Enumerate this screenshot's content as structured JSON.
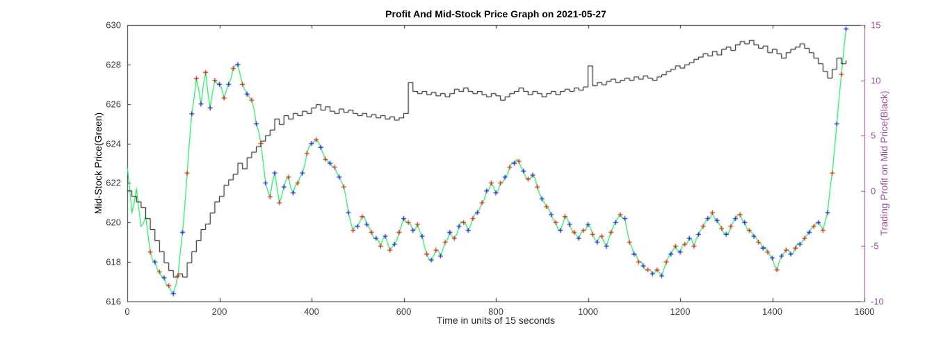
{
  "chart_data": {
    "type": "line",
    "title": "Profit And Mid-Stock Price Graph on 2021-05-27",
    "xlabel": "Time in units of 15 seconds",
    "ylabel_left": "Mid-Stock Price(Green)",
    "ylabel_right": "Trading Profit on Mid Price(Black)",
    "x_range": [
      0,
      1600
    ],
    "y_left_range": [
      616,
      630
    ],
    "y_right_range": [
      -10,
      15
    ],
    "x_ticks": [
      0,
      200,
      400,
      600,
      800,
      1000,
      1200,
      1400,
      1600
    ],
    "y_left_ticks": [
      616,
      618,
      620,
      622,
      624,
      626,
      628,
      630
    ],
    "y_right_ticks": [
      -10,
      -5,
      0,
      5,
      10,
      15
    ],
    "grid": false,
    "colors": {
      "price_line": "#00E14A",
      "profit_line": "#000000",
      "marker_red": "#D12C10",
      "marker_blue": "#2222CC",
      "right_axis": "#9D4D9D",
      "axis": "#262626",
      "tick_text": "#3A3A3A"
    },
    "series": [
      {
        "name": "mid_stock_price",
        "axis": "left",
        "style": "line",
        "color": "#00E14A",
        "x_start": 0,
        "x_step": 10,
        "y": [
          622.8,
          620.5,
          621.7,
          619.8,
          620.3,
          618.5,
          618.0,
          617.5,
          617.2,
          616.8,
          616.4,
          617.3,
          619.5,
          622.5,
          625.5,
          627.3,
          626.0,
          627.6,
          625.8,
          627.2,
          627.0,
          626.3,
          627.0,
          627.8,
          628.0,
          627.0,
          626.5,
          626.2,
          625.0,
          624.0,
          622.0,
          621.3,
          622.5,
          621.0,
          621.8,
          622.3,
          621.5,
          622.0,
          622.5,
          623.5,
          624.0,
          624.2,
          623.8,
          623.2,
          623.0,
          622.8,
          622.3,
          621.8,
          620.5,
          619.6,
          619.8,
          620.3,
          619.9,
          619.5,
          619.2,
          618.8,
          619.3,
          618.6,
          618.9,
          619.5,
          620.2,
          620.0,
          619.6,
          619.9,
          619.3,
          618.4,
          618.1,
          618.6,
          618.3,
          619.0,
          619.5,
          619.2,
          619.8,
          620.0,
          619.6,
          620.2,
          620.5,
          621.0,
          621.6,
          622.0,
          621.5,
          622.0,
          622.3,
          622.8,
          623.0,
          623.1,
          622.6,
          622.2,
          622.4,
          621.8,
          621.2,
          620.8,
          620.4,
          620.0,
          619.6,
          620.3,
          619.9,
          619.5,
          619.2,
          619.6,
          619.9,
          619.4,
          619.0,
          619.3,
          618.8,
          619.5,
          620.0,
          620.4,
          620.2,
          619.0,
          618.4,
          618.0,
          617.8,
          617.6,
          617.4,
          617.6,
          617.3,
          618.0,
          618.4,
          618.8,
          618.5,
          618.9,
          619.2,
          618.8,
          619.4,
          619.8,
          620.2,
          620.5,
          620.1,
          619.7,
          619.4,
          619.8,
          620.2,
          620.4,
          620.0,
          619.6,
          619.3,
          619.0,
          618.7,
          618.5,
          618.2,
          617.6,
          618.3,
          618.6,
          618.4,
          618.7,
          618.9,
          619.2,
          619.5,
          619.8,
          620.0,
          619.6,
          620.5,
          622.5,
          625.0,
          627.5,
          629.8
        ]
      },
      {
        "name": "trading_profit",
        "axis": "right",
        "style": "line",
        "line_style": "stairs",
        "color": "#000000",
        "x_start": 0,
        "x_step": 10,
        "y": [
          0,
          -0.5,
          -1.0,
          -1.5,
          -2.5,
          -3.5,
          -4.5,
          -5.5,
          -6.5,
          -7.2,
          -7.8,
          -7.5,
          -7.8,
          -6.5,
          -5.5,
          -4.5,
          -3.5,
          -3.0,
          -2.0,
          -1.0,
          -0.5,
          0.5,
          1.0,
          1.5,
          2.5,
          2.0,
          3.0,
          3.5,
          4.0,
          4.5,
          5.0,
          5.5,
          6.5,
          6.0,
          6.8,
          6.5,
          7.0,
          6.8,
          7.2,
          7.0,
          7.5,
          7.8,
          7.3,
          7.6,
          7.2,
          7.0,
          7.4,
          7.1,
          7.3,
          7.0,
          6.8,
          7.0,
          6.7,
          6.9,
          6.6,
          6.8,
          6.5,
          6.7,
          6.4,
          6.6,
          7.0,
          9.8,
          9.0,
          8.8,
          9.0,
          8.7,
          8.9,
          8.6,
          8.8,
          8.5,
          8.8,
          9.2,
          9.0,
          9.3,
          9.0,
          8.8,
          9.0,
          8.7,
          8.5,
          8.8,
          8.6,
          8.2,
          8.5,
          8.8,
          9.0,
          9.3,
          9.0,
          8.7,
          9.0,
          8.8,
          8.5,
          8.8,
          9.0,
          8.7,
          9.0,
          9.2,
          9.0,
          9.3,
          9.1,
          9.4,
          11.3,
          9.5,
          9.8,
          9.6,
          9.9,
          10.1,
          9.8,
          10.0,
          10.2,
          10.0,
          10.3,
          10.1,
          10.4,
          10.2,
          10.0,
          10.3,
          10.5,
          10.8,
          11.0,
          11.3,
          11.1,
          11.4,
          11.6,
          11.9,
          12.1,
          12.4,
          12.2,
          12.6,
          12.3,
          12.8,
          13.0,
          12.7,
          13.2,
          13.5,
          13.3,
          13.6,
          13.2,
          12.9,
          13.1,
          12.5,
          12.8,
          12.4,
          12.0,
          12.5,
          12.8,
          13.0,
          13.3,
          12.9,
          12.5,
          12.0,
          11.5,
          10.8,
          10.2,
          11.0,
          12.0,
          11.5,
          11.8
        ]
      },
      {
        "name": "signal_markers_red",
        "axis": "left",
        "style": "plus",
        "color": "#D12C10",
        "x_start": 50,
        "x_step": 20,
        "y": [
          618.5,
          617.5,
          616.8,
          617.3,
          622.5,
          627.3,
          627.6,
          627.2,
          626.3,
          627.8,
          627.0,
          626.2,
          624.0,
          621.3,
          621.0,
          622.3,
          622.0,
          623.5,
          624.2,
          623.2,
          622.8,
          621.8,
          619.6,
          620.3,
          619.5,
          618.8,
          618.6,
          619.5,
          620.0,
          619.9,
          618.4,
          618.6,
          619.0,
          619.2,
          620.0,
          620.2,
          621.0,
          622.0,
          622.0,
          622.8,
          623.1,
          622.2,
          621.8,
          620.8,
          620.0,
          620.3,
          619.5,
          619.6,
          619.4,
          619.3,
          619.5,
          620.4,
          619.0,
          618.0,
          617.6,
          617.6,
          618.0,
          618.8,
          618.9,
          618.8,
          619.8,
          620.5,
          619.7,
          619.8,
          620.4,
          619.6,
          619.0,
          618.5,
          617.6,
          618.6,
          618.7,
          619.2,
          619.8,
          619.6,
          622.5,
          627.5
        ]
      },
      {
        "name": "signal_markers_blue",
        "axis": "left",
        "style": "plus",
        "color": "#2222CC",
        "x_start": 60,
        "x_step": 20,
        "y": [
          618.0,
          617.2,
          616.4,
          619.5,
          625.5,
          626.0,
          625.8,
          627.0,
          627.0,
          628.0,
          626.5,
          625.0,
          622.0,
          622.5,
          621.8,
          621.5,
          622.5,
          624.0,
          623.8,
          623.0,
          622.3,
          620.5,
          619.8,
          619.9,
          619.2,
          619.3,
          618.9,
          620.2,
          619.6,
          619.3,
          618.1,
          618.3,
          619.5,
          619.8,
          619.6,
          620.5,
          621.6,
          621.5,
          622.3,
          623.0,
          622.6,
          622.4,
          621.2,
          620.4,
          619.6,
          619.9,
          619.2,
          619.9,
          619.0,
          618.8,
          620.0,
          620.2,
          618.4,
          617.8,
          617.4,
          617.3,
          618.4,
          618.5,
          619.2,
          619.4,
          620.2,
          620.1,
          619.4,
          620.2,
          620.0,
          619.3,
          618.7,
          618.2,
          618.3,
          618.4,
          618.9,
          619.5,
          620.0,
          620.5,
          625.0,
          629.8
        ]
      }
    ]
  }
}
